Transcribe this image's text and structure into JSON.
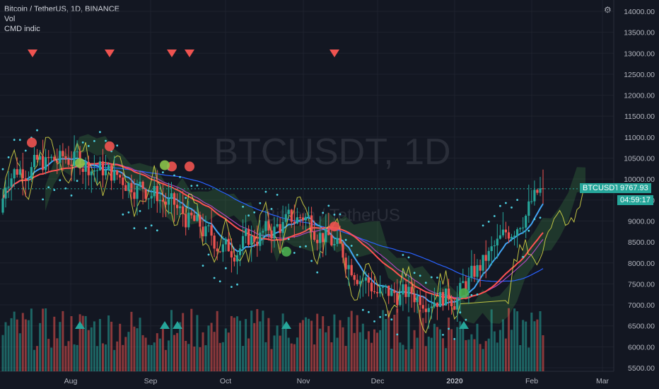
{
  "header": {
    "title": "Bitcoin / TetherUS, 1D, BINANCE",
    "indicators": [
      "Vol",
      "CMD indic"
    ]
  },
  "watermark": {
    "symbol": "BTCUSDT, 1D",
    "subtitle": "Bitcoin / TetherUS"
  },
  "price_axis": {
    "labels": [
      "14000.00",
      "13500.00",
      "13000.00",
      "12500.00",
      "12000.00",
      "11500.00",
      "11000.00",
      "10500.00",
      "10000.00",
      "9500.00",
      "9000.00",
      "8500.00",
      "8000.00",
      "7500.00",
      "7000.00",
      "6500.00",
      "6000.00",
      "5500.00"
    ]
  },
  "time_axis": {
    "labels": [
      "Aug",
      "Sep",
      "Oct",
      "Nov",
      "Dec",
      "2020",
      "Feb",
      "Mar"
    ]
  },
  "current_price": {
    "symbol_tag": "BTCUSDT",
    "price": "9767.93",
    "countdown": "04:59:17",
    "value": 9767.93
  },
  "colors": {
    "background": "#131722",
    "up": "#26a69a",
    "down": "#ef5350",
    "accent_tag": "#26a69a",
    "kijun": "#ff5252",
    "tenkan": "#42a5f5",
    "lagging": "#e8e84a",
    "parabolic": "#4dd0e1",
    "ma_purple": "#ab47bc",
    "ma_blue": "#2962ff"
  },
  "chart_data": {
    "type": "candlestick",
    "symbol": "BTCUSDT",
    "interval": "1D",
    "exchange": "BINANCE",
    "ylim": [
      5500,
      14000
    ],
    "x_ticks": [
      "Aug",
      "Sep",
      "Oct",
      "Nov",
      "Dec",
      "2020",
      "Feb",
      "Mar"
    ],
    "close_approx_by_month": [
      {
        "period": "Jul",
        "close": 10200
      },
      {
        "period": "Aug",
        "close": 10500
      },
      {
        "period": "Sep",
        "close": 9700
      },
      {
        "period": "Oct",
        "close": 8300
      },
      {
        "period": "Nov",
        "close": 9150
      },
      {
        "period": "Dec",
        "close": 7250
      },
      {
        "period": "2020",
        "close": 7200
      },
      {
        "period": "Feb",
        "close": 9767.93
      }
    ],
    "sell_markers": [
      "Jul",
      "Aug",
      "Sep",
      "Sep",
      "Nov"
    ],
    "buy_markers": [
      "Aug",
      "Sep",
      "Sep",
      "Oct",
      "2020"
    ],
    "last_price": 9767.93
  }
}
